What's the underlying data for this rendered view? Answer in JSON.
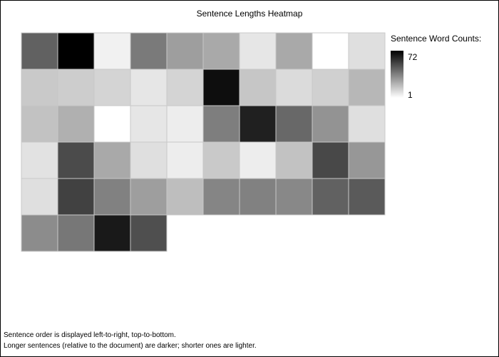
{
  "title": "Sentence Lengths Heatmap",
  "legend": {
    "title": "Sentence Word Counts:",
    "max_label": "72",
    "min_label": "1"
  },
  "footer": {
    "line1": "Sentence order is displayed left-to-right, top-to-bottom.",
    "line2": "Longer sentences (relative to the document) are darker; shorter ones are lighter."
  },
  "colors": {
    "low": "#ffffff",
    "high": "#000000",
    "cell_border": "#c8c8c8"
  },
  "chart_data": {
    "type": "heatmap",
    "title": "Sentence Lengths Heatmap",
    "columns": 10,
    "order": "left-to-right, top-to-bottom",
    "min": 1,
    "max": 72,
    "values": [
      45,
      72,
      5,
      38,
      28,
      25,
      8,
      25,
      1,
      10,
      16,
      15,
      13,
      8,
      13,
      68,
      17,
      11,
      14,
      21,
      18,
      23,
      1,
      8,
      6,
      37,
      63,
      43,
      31,
      10,
      9,
      51,
      25,
      10,
      6,
      16,
      6,
      18,
      52,
      30,
      10,
      54,
      36,
      28,
      19,
      35,
      36,
      34,
      45,
      47,
      33,
      39,
      65,
      50
    ]
  }
}
